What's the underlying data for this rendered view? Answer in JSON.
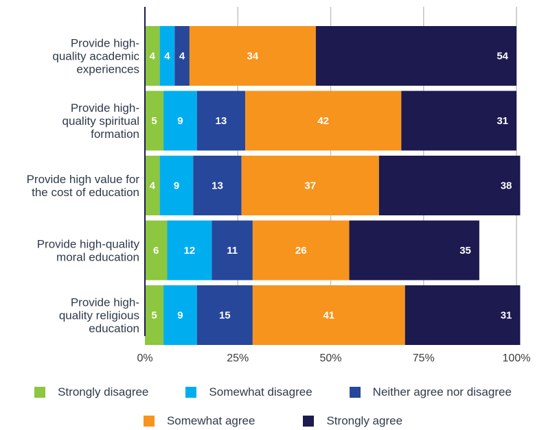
{
  "chart_data": {
    "type": "bar",
    "orientation": "horizontal",
    "stacked": true,
    "categories": [
      [
        "Provide high-",
        "quality academic",
        "experiences"
      ],
      [
        "Provide high-",
        "quality spiritual",
        "formation"
      ],
      [
        "Provide high value for",
        "the cost of education"
      ],
      [
        "Provide high-quality",
        "moral education"
      ],
      [
        "Provide high-",
        "quality religious",
        "education"
      ]
    ],
    "series": [
      {
        "name": "Strongly disagree",
        "color": "#8dc63f",
        "values": [
          4,
          5,
          4,
          6,
          5
        ]
      },
      {
        "name": "Somewhat disagree",
        "color": "#00aeef",
        "values": [
          4,
          9,
          9,
          12,
          9
        ]
      },
      {
        "name": "Neither agree nor disagree",
        "color": "#27479a",
        "values": [
          4,
          13,
          13,
          11,
          15
        ]
      },
      {
        "name": "Somewhat agree",
        "color": "#f7941d",
        "values": [
          34,
          42,
          37,
          26,
          41
        ]
      },
      {
        "name": "Strongly agree",
        "color": "#1c1a4f",
        "values": [
          54,
          31,
          38,
          35,
          31
        ]
      }
    ],
    "xlim": [
      0,
      100
    ],
    "xticks": [
      "0%",
      "25%",
      "50%",
      "75%",
      "100%"
    ],
    "grid": true,
    "legend_position": "bottom"
  }
}
